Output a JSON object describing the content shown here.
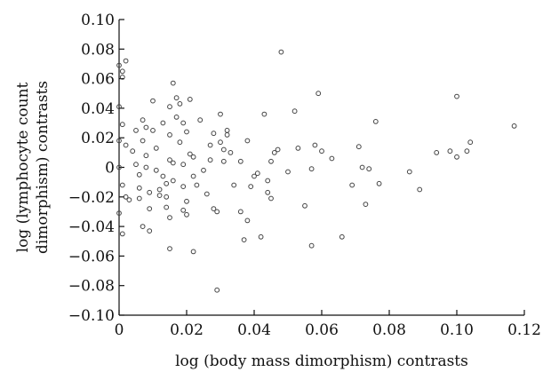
{
  "chart_data": {
    "type": "scatter",
    "title": "",
    "xlabel": "log (body mass dimorphism) contrasts",
    "ylabel_lines": [
      "log (lymphocyte count",
      "dimorphism) contrasts"
    ],
    "xlim": [
      0,
      0.12
    ],
    "ylim": [
      -0.1,
      0.1
    ],
    "x_ticks": [
      0,
      0.02,
      0.04,
      0.06,
      0.08,
      0.1,
      0.12
    ],
    "x_tick_labels": [
      "0",
      "0.02",
      "0.04",
      "0.06",
      "0.08",
      "0.10",
      "0.12"
    ],
    "y_ticks": [
      0.1,
      0.08,
      0.06,
      0.04,
      0.02,
      0,
      -0.02,
      -0.04,
      -0.06,
      -0.08,
      -0.1
    ],
    "y_tick_labels": [
      "0.10",
      "0.08",
      "0.06",
      "0.04",
      "0.02",
      "0",
      "−0.02",
      "−0.04",
      "−0.06",
      "−0.08",
      "−0.10"
    ],
    "grid": false,
    "legend": "none",
    "points": [
      [
        0.0,
        0.069
      ],
      [
        0.001,
        0.065
      ],
      [
        0.002,
        0.072
      ],
      [
        0.001,
        0.061
      ],
      [
        0.0,
        0.041
      ],
      [
        0.001,
        0.029
      ],
      [
        0.0,
        0.018
      ],
      [
        0.002,
        0.015
      ],
      [
        0.0,
        0.0
      ],
      [
        0.001,
        -0.012
      ],
      [
        0.002,
        -0.02
      ],
      [
        0.0,
        -0.031
      ],
      [
        0.001,
        -0.045
      ],
      [
        0.003,
        -0.022
      ],
      [
        0.004,
        0.011
      ],
      [
        0.005,
        0.025
      ],
      [
        0.005,
        0.002
      ],
      [
        0.006,
        -0.005
      ],
      [
        0.006,
        -0.014
      ],
      [
        0.006,
        -0.021
      ],
      [
        0.007,
        0.018
      ],
      [
        0.007,
        0.032
      ],
      [
        0.008,
        0.027
      ],
      [
        0.008,
        0.008
      ],
      [
        0.008,
        0.0
      ],
      [
        0.009,
        -0.017
      ],
      [
        0.009,
        -0.028
      ],
      [
        0.007,
        -0.04
      ],
      [
        0.009,
        -0.043
      ],
      [
        0.01,
        0.045
      ],
      [
        0.01,
        0.025
      ],
      [
        0.011,
        0.013
      ],
      [
        0.011,
        -0.002
      ],
      [
        0.012,
        -0.015
      ],
      [
        0.012,
        -0.019
      ],
      [
        0.013,
        -0.006
      ],
      [
        0.013,
        0.03
      ],
      [
        0.014,
        -0.011
      ],
      [
        0.014,
        -0.02
      ],
      [
        0.015,
        0.041
      ],
      [
        0.015,
        0.022
      ],
      [
        0.015,
        0.005
      ],
      [
        0.016,
        0.003
      ],
      [
        0.016,
        -0.009
      ],
      [
        0.014,
        -0.027
      ],
      [
        0.015,
        -0.034
      ],
      [
        0.015,
        -0.055
      ],
      [
        0.016,
        0.057
      ],
      [
        0.017,
        0.047
      ],
      [
        0.017,
        0.034
      ],
      [
        0.018,
        0.043
      ],
      [
        0.018,
        0.017
      ],
      [
        0.019,
        0.03
      ],
      [
        0.019,
        0.002
      ],
      [
        0.019,
        -0.013
      ],
      [
        0.02,
        -0.023
      ],
      [
        0.019,
        -0.029
      ],
      [
        0.02,
        -0.032
      ],
      [
        0.02,
        0.024
      ],
      [
        0.021,
        0.046
      ],
      [
        0.021,
        0.009
      ],
      [
        0.022,
        0.007
      ],
      [
        0.022,
        -0.006
      ],
      [
        0.023,
        -0.012
      ],
      [
        0.022,
        -0.057
      ],
      [
        0.024,
        0.032
      ],
      [
        0.025,
        -0.002
      ],
      [
        0.026,
        -0.018
      ],
      [
        0.027,
        0.005
      ],
      [
        0.027,
        0.015
      ],
      [
        0.028,
        0.023
      ],
      [
        0.028,
        -0.028
      ],
      [
        0.029,
        -0.03
      ],
      [
        0.029,
        -0.083
      ],
      [
        0.03,
        0.036
      ],
      [
        0.03,
        0.017
      ],
      [
        0.031,
        0.012
      ],
      [
        0.031,
        0.004
      ],
      [
        0.032,
        0.025
      ],
      [
        0.032,
        0.022
      ],
      [
        0.033,
        0.01
      ],
      [
        0.034,
        -0.012
      ],
      [
        0.036,
        0.004
      ],
      [
        0.036,
        -0.03
      ],
      [
        0.037,
        -0.049
      ],
      [
        0.038,
        0.018
      ],
      [
        0.038,
        -0.036
      ],
      [
        0.039,
        -0.013
      ],
      [
        0.04,
        -0.006
      ],
      [
        0.041,
        -0.004
      ],
      [
        0.042,
        -0.047
      ],
      [
        0.043,
        0.036
      ],
      [
        0.044,
        -0.009
      ],
      [
        0.044,
        -0.017
      ],
      [
        0.045,
        -0.021
      ],
      [
        0.045,
        0.004
      ],
      [
        0.046,
        0.01
      ],
      [
        0.047,
        0.012
      ],
      [
        0.048,
        0.078
      ],
      [
        0.05,
        -0.003
      ],
      [
        0.052,
        0.038
      ],
      [
        0.053,
        0.013
      ],
      [
        0.055,
        -0.026
      ],
      [
        0.057,
        -0.053
      ],
      [
        0.057,
        -0.001
      ],
      [
        0.058,
        0.015
      ],
      [
        0.059,
        0.05
      ],
      [
        0.06,
        0.011
      ],
      [
        0.063,
        0.006
      ],
      [
        0.066,
        -0.047
      ],
      [
        0.069,
        -0.012
      ],
      [
        0.071,
        0.014
      ],
      [
        0.072,
        0.0
      ],
      [
        0.073,
        -0.025
      ],
      [
        0.074,
        -0.001
      ],
      [
        0.076,
        0.031
      ],
      [
        0.077,
        -0.011
      ],
      [
        0.086,
        -0.003
      ],
      [
        0.089,
        -0.015
      ],
      [
        0.094,
        0.01
      ],
      [
        0.098,
        0.011
      ],
      [
        0.1,
        0.007
      ],
      [
        0.1,
        0.048
      ],
      [
        0.103,
        0.011
      ],
      [
        0.104,
        0.017
      ],
      [
        0.117,
        0.028
      ]
    ]
  }
}
